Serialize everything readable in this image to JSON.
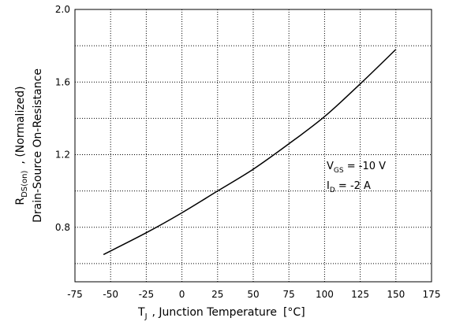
{
  "chart_data": {
    "type": "line",
    "title": "",
    "xlabel": {
      "main": "T",
      "sub": "J",
      "rest": ", Junction Temperature",
      "unit_open": "[",
      "unit": "°C",
      "unit_close": "]"
    },
    "ylabel": {
      "line1_main": "R",
      "line1_sub": "DS(on)",
      "line1_rest": ", (Normalized)",
      "line2": "Drain-Source On-Resistance"
    },
    "xlim": [
      -75,
      175
    ],
    "ylim": [
      0.5,
      2.0
    ],
    "x_ticks": [
      "-75",
      "-50",
      "-25",
      "0",
      "25",
      "50",
      "75",
      "100",
      "125",
      "150",
      "175"
    ],
    "y_ticks": [
      "0.8",
      "1.2",
      "1.6",
      "2.0"
    ],
    "grid": true,
    "series": [
      {
        "x": [
          -55,
          -25,
          0,
          25,
          50,
          75,
          100,
          125,
          150
        ],
        "y": [
          0.65,
          0.77,
          0.88,
          1.0,
          1.12,
          1.26,
          1.41,
          1.59,
          1.78
        ]
      }
    ],
    "annotations": {
      "vgs": {
        "main": "V",
        "sub": "GS",
        "rest": " = -10 V"
      },
      "id": {
        "main": "I",
        "sub": "D",
        "rest": " = -2 A"
      }
    },
    "colors": {
      "line": "#000000",
      "grid": "#000000",
      "background": "#ffffff"
    }
  }
}
